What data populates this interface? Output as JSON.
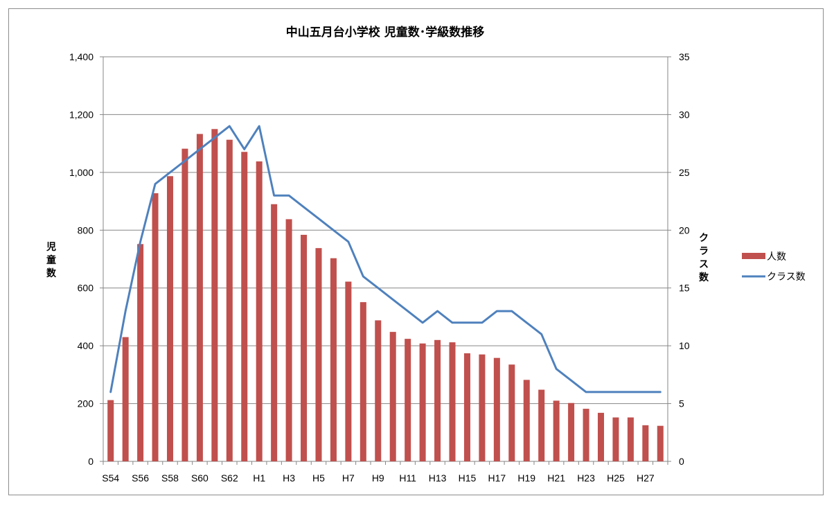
{
  "chart_data": {
    "type": "bar",
    "title": "中山五月台小学校 児童数･学級数推移",
    "ylabel": "児童数",
    "y2label": "クラス数",
    "x": [
      "S54",
      "S55",
      "S56",
      "S57",
      "S58",
      "S59",
      "S60",
      "S61",
      "S62",
      "S63",
      "H1",
      "H2",
      "H3",
      "H4",
      "H5",
      "H6",
      "H7",
      "H8",
      "H9",
      "H10",
      "H11",
      "H12",
      "H13",
      "H14",
      "H15",
      "H16",
      "H17",
      "H18",
      "H19",
      "H20",
      "H21",
      "H22",
      "H23",
      "H24",
      "H25",
      "H26",
      "H27",
      "H28"
    ],
    "x_tick_labels": [
      "S54",
      "S56",
      "S58",
      "S60",
      "S62",
      "H1",
      "H3",
      "H5",
      "H7",
      "H9",
      "H11",
      "H13",
      "H15",
      "H17",
      "H19",
      "H21",
      "H23",
      "H25",
      "H27"
    ],
    "y_ticks": [
      "0",
      "200",
      "400",
      "600",
      "800",
      "1,000",
      "1,200",
      "1,400"
    ],
    "y2_ticks": [
      "0",
      "5",
      "10",
      "15",
      "20",
      "25",
      "30",
      "35"
    ],
    "ylim": [
      0,
      1400
    ],
    "y2lim": [
      0,
      35
    ],
    "grid": true,
    "legend_position": "right",
    "series": [
      {
        "name": "人数",
        "type": "bar",
        "axis": "left",
        "color": "#C0504D",
        "values": [
          212,
          430,
          752,
          928,
          987,
          1082,
          1133,
          1150,
          1113,
          1071,
          1038,
          890,
          838,
          784,
          738,
          703,
          622,
          551,
          488,
          448,
          424,
          408,
          420,
          412,
          374,
          370,
          358,
          335,
          282,
          248,
          210,
          202,
          182,
          168,
          152,
          152,
          125,
          123
        ]
      },
      {
        "name": "クラス数",
        "type": "line",
        "axis": "right",
        "color": "#4F81BD",
        "values": [
          6,
          13,
          19,
          24,
          25,
          26,
          27,
          28,
          29,
          27,
          29,
          23,
          23,
          22,
          21,
          20,
          19,
          16,
          15,
          14,
          13,
          12,
          13,
          12,
          12,
          12,
          13,
          13,
          12,
          11,
          8,
          7,
          6,
          6,
          6,
          6,
          6,
          6
        ]
      }
    ]
  }
}
